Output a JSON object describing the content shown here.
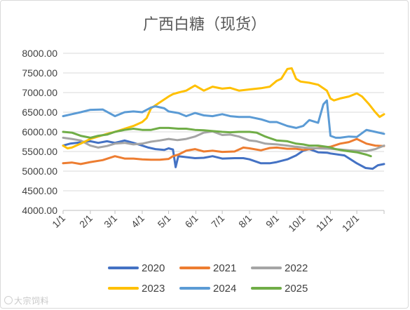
{
  "chart_data": {
    "type": "line",
    "title": "广西白糖（现货）",
    "ylim": [
      4000,
      8000
    ],
    "yticks": [
      "4000.00",
      "4500.00",
      "5000.00",
      "5500.00",
      "6000.00",
      "6500.00",
      "7000.00",
      "7500.00",
      "8000.00"
    ],
    "xticks": [
      "1/1",
      "2/1",
      "3/1",
      "4/1",
      "5/1",
      "6/1",
      "7/1",
      "8/1",
      "9/1",
      "10/1",
      "11/1",
      "12/1"
    ],
    "xlim": [
      0,
      365
    ],
    "grid": true,
    "legend_position": "bottom",
    "series": [
      {
        "name": "2020",
        "color": "#4472C4",
        "x": [
          0,
          8,
          15,
          25,
          31,
          40,
          50,
          59,
          70,
          80,
          90,
          97,
          105,
          115,
          120,
          125,
          128,
          131,
          138,
          150,
          160,
          170,
          181,
          195,
          205,
          212,
          225,
          235,
          243,
          255,
          265,
          273,
          280,
          290,
          300,
          304,
          320,
          334,
          344,
          352,
          358,
          365
        ],
        "y": [
          5650,
          5700,
          5720,
          5750,
          5760,
          5720,
          5760,
          5720,
          5780,
          5720,
          5650,
          5600,
          5560,
          5540,
          5580,
          5550,
          5100,
          5380,
          5360,
          5330,
          5340,
          5380,
          5320,
          5330,
          5330,
          5300,
          5200,
          5200,
          5230,
          5300,
          5400,
          5520,
          5560,
          5480,
          5470,
          5450,
          5400,
          5200,
          5080,
          5060,
          5150,
          5180
        ]
      },
      {
        "name": "2021",
        "color": "#ED7D31",
        "x": [
          0,
          10,
          20,
          31,
          45,
          59,
          70,
          80,
          90,
          100,
          110,
          120,
          125,
          131,
          140,
          150,
          160,
          170,
          181,
          195,
          205,
          212,
          225,
          235,
          243,
          255,
          265,
          273,
          280,
          290,
          304,
          315,
          325,
          334,
          345,
          355,
          365
        ],
        "y": [
          5200,
          5220,
          5180,
          5230,
          5280,
          5380,
          5320,
          5320,
          5300,
          5290,
          5290,
          5310,
          5380,
          5420,
          5520,
          5560,
          5500,
          5520,
          5490,
          5500,
          5600,
          5580,
          5530,
          5590,
          5600,
          5570,
          5570,
          5540,
          5560,
          5590,
          5620,
          5700,
          5740,
          5820,
          5700,
          5650,
          5640
        ]
      },
      {
        "name": "2022",
        "color": "#A5A5A5",
        "x": [
          0,
          10,
          20,
          31,
          40,
          50,
          59,
          70,
          80,
          90,
          100,
          110,
          120,
          130,
          140,
          150,
          160,
          170,
          181,
          190,
          200,
          212,
          220,
          230,
          243,
          255,
          265,
          273,
          280,
          290,
          304,
          315,
          325,
          334,
          345,
          355,
          365
        ],
        "y": [
          5850,
          5820,
          5780,
          5650,
          5600,
          5640,
          5700,
          5720,
          5680,
          5700,
          5750,
          5780,
          5820,
          5790,
          5820,
          5880,
          5980,
          6010,
          5920,
          5930,
          5880,
          5780,
          5760,
          5700,
          5680,
          5650,
          5620,
          5600,
          5590,
          5580,
          5570,
          5550,
          5530,
          5520,
          5510,
          5560,
          5650
        ]
      },
      {
        "name": "2023",
        "color": "#FFC000",
        "x": [
          0,
          5,
          10,
          20,
          31,
          40,
          50,
          59,
          70,
          80,
          90,
          95,
          100,
          110,
          120,
          125,
          131,
          140,
          150,
          160,
          170,
          181,
          190,
          200,
          212,
          225,
          235,
          243,
          248,
          255,
          260,
          265,
          270,
          280,
          290,
          300,
          304,
          308,
          315,
          325,
          334,
          340,
          348,
          355,
          360,
          365
        ],
        "y": [
          5650,
          5580,
          5600,
          5700,
          5820,
          5880,
          5950,
          6000,
          6080,
          6150,
          6250,
          6350,
          6600,
          6750,
          6900,
          6960,
          7000,
          7050,
          7180,
          7050,
          7150,
          7100,
          7120,
          7050,
          7080,
          7110,
          7150,
          7300,
          7350,
          7600,
          7620,
          7350,
          7280,
          7250,
          7200,
          7050,
          6850,
          6800,
          6850,
          6900,
          6980,
          6900,
          6700,
          6500,
          6380,
          6450
        ]
      },
      {
        "name": "2024",
        "color": "#5B9BD5",
        "x": [
          0,
          10,
          20,
          31,
          45,
          59,
          70,
          80,
          90,
          100,
          105,
          115,
          120,
          131,
          140,
          150,
          160,
          170,
          181,
          190,
          200,
          212,
          225,
          235,
          243,
          255,
          265,
          273,
          280,
          290,
          296,
          300,
          304,
          310,
          315,
          325,
          334,
          345,
          355,
          365
        ],
        "y": [
          6400,
          6450,
          6500,
          6560,
          6570,
          6400,
          6500,
          6520,
          6500,
          6620,
          6650,
          6600,
          6520,
          6480,
          6400,
          6480,
          6420,
          6400,
          6450,
          6400,
          6380,
          6380,
          6320,
          6250,
          6250,
          6150,
          6100,
          6150,
          6300,
          6230,
          6700,
          6800,
          5900,
          5850,
          5850,
          5880,
          5870,
          6050,
          6000,
          5950
        ]
      },
      {
        "name": "2025",
        "color": "#70AD47",
        "x": [
          0,
          10,
          20,
          31,
          40,
          50,
          59,
          70,
          80,
          90,
          100,
          110,
          120,
          131,
          140,
          150,
          160,
          170,
          181,
          190,
          200,
          212,
          220,
          230,
          243,
          255,
          265,
          273,
          280,
          290,
          300,
          304,
          310,
          320,
          334,
          345,
          350
        ],
        "y": [
          6000,
          5980,
          5900,
          5850,
          5900,
          5930,
          6000,
          6050,
          6080,
          6050,
          6050,
          6100,
          6100,
          6080,
          6080,
          6050,
          6040,
          6020,
          6000,
          5990,
          6000,
          6000,
          5980,
          5880,
          5780,
          5760,
          5700,
          5680,
          5650,
          5650,
          5620,
          5600,
          5560,
          5520,
          5480,
          5420,
          5380
        ]
      }
    ]
  }
}
